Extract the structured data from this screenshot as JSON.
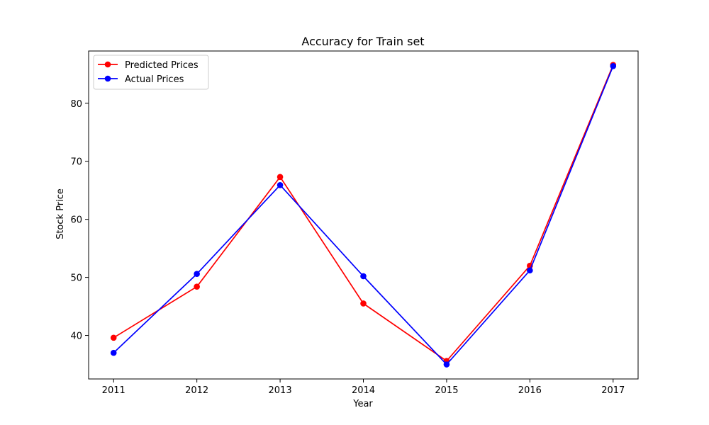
{
  "chart_data": {
    "type": "line",
    "title": "Accuracy for Train set",
    "xlabel": "Year",
    "ylabel": "Stock Price",
    "x": [
      2011,
      2012,
      2013,
      2014,
      2015,
      2016,
      2017
    ],
    "xlim": [
      2010.7,
      2017.3
    ],
    "ylim": [
      32.5,
      89.0
    ],
    "xticks": [
      "2011",
      "2012",
      "2013",
      "2014",
      "2015",
      "2016",
      "2017"
    ],
    "yticks": [
      40,
      50,
      60,
      70,
      80
    ],
    "ytick_labels": [
      "40",
      "50",
      "60",
      "70",
      "80"
    ],
    "grid": false,
    "legend_position": "upper-left",
    "series": [
      {
        "name": "Predicted Prices",
        "color": "#ff0000",
        "marker": "circle",
        "values": [
          39.6,
          48.4,
          67.3,
          45.5,
          35.6,
          52.0,
          86.6
        ]
      },
      {
        "name": "Actual Prices",
        "color": "#0000ff",
        "marker": "circle",
        "values": [
          37.0,
          50.6,
          65.9,
          50.2,
          35.0,
          51.2,
          86.4
        ]
      }
    ]
  }
}
